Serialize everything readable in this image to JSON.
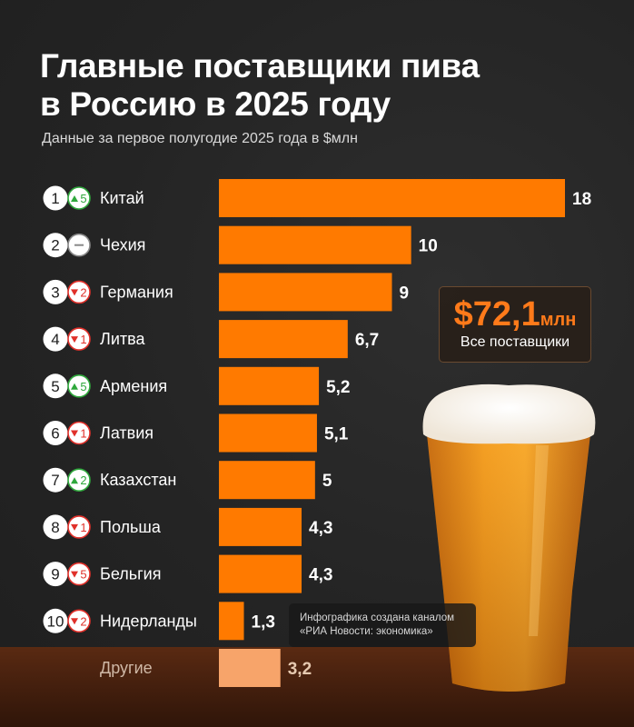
{
  "header": {
    "title": "Главные поставщики пива\nв Россию в 2025 году",
    "subtitle": "Данные за первое полугодие 2025 года в $млн"
  },
  "total": {
    "value": "$72,1",
    "unit": "млн",
    "label": "Все поставщики"
  },
  "credit": {
    "line1": "Инфографика создана каналом",
    "line2": "«РИА Новости: экономика»"
  },
  "colors": {
    "bar": "#ff7a00",
    "bar_other": "#f7a46a",
    "up": "#2fa83c",
    "down": "#e0302a",
    "same": "#888888"
  },
  "chart_data": {
    "type": "bar",
    "orientation": "horizontal",
    "unit": "$млн",
    "xlim": [
      0,
      18
    ],
    "bars": [
      {
        "rank": "1",
        "change_dir": "up",
        "change": "5",
        "label": "Китай",
        "value": 18,
        "value_label": "18"
      },
      {
        "rank": "2",
        "change_dir": "same",
        "change": "",
        "label": "Чехия",
        "value": 10,
        "value_label": "10"
      },
      {
        "rank": "3",
        "change_dir": "down",
        "change": "2",
        "label": "Германия",
        "value": 9,
        "value_label": "9"
      },
      {
        "rank": "4",
        "change_dir": "down",
        "change": "1",
        "label": "Литва",
        "value": 6.7,
        "value_label": "6,7"
      },
      {
        "rank": "5",
        "change_dir": "up",
        "change": "5",
        "label": "Армения",
        "value": 5.2,
        "value_label": "5,2"
      },
      {
        "rank": "6",
        "change_dir": "down",
        "change": "1",
        "label": "Латвия",
        "value": 5.1,
        "value_label": "5,1"
      },
      {
        "rank": "7",
        "change_dir": "up",
        "change": "2",
        "label": "Казахстан",
        "value": 5,
        "value_label": "5"
      },
      {
        "rank": "8",
        "change_dir": "down",
        "change": "1",
        "label": "Польша",
        "value": 4.3,
        "value_label": "4,3"
      },
      {
        "rank": "9",
        "change_dir": "down",
        "change": "5",
        "label": "Бельгия",
        "value": 4.3,
        "value_label": "4,3"
      },
      {
        "rank": "10",
        "change_dir": "down",
        "change": "2",
        "label": "Нидерланды",
        "value": 1.3,
        "value_label": "1,3"
      }
    ],
    "other": {
      "label": "Другие",
      "value": 3.2,
      "value_label": "3,2"
    }
  }
}
